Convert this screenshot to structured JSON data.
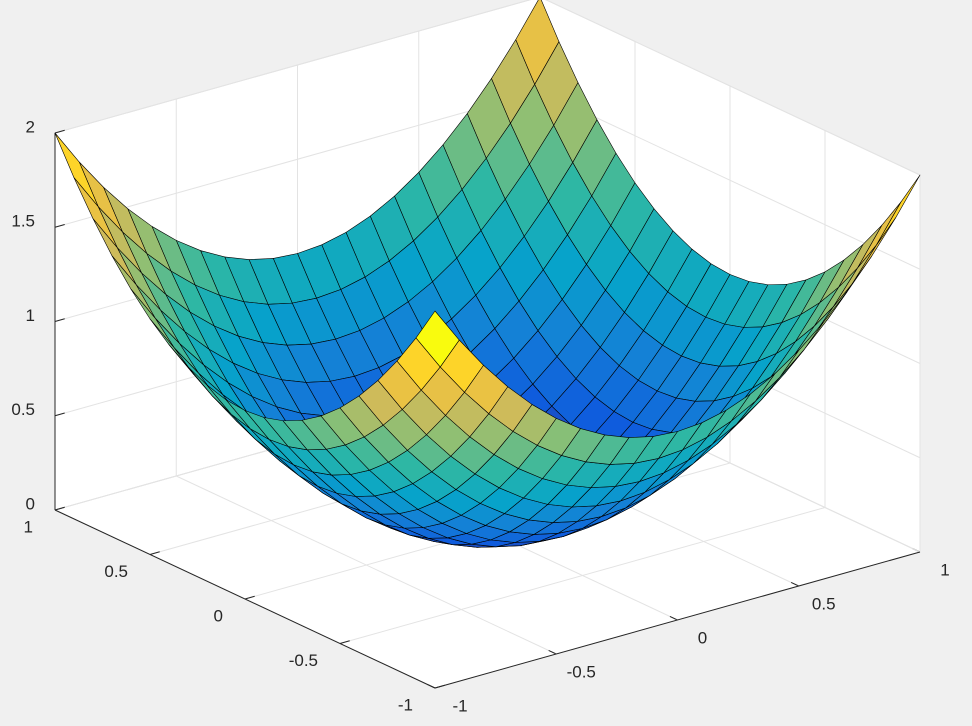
{
  "chart_data": {
    "type": "surface",
    "colormap": "parula",
    "grid": true,
    "x": [
      -1,
      -0.9,
      -0.8,
      -0.7,
      -0.6,
      -0.5,
      -0.4,
      -0.3,
      -0.2,
      -0.1,
      0,
      0.1,
      0.2,
      0.3,
      0.4,
      0.5,
      0.6,
      0.7,
      0.8,
      0.9,
      1
    ],
    "y": [
      -1,
      -0.9,
      -0.8,
      -0.7,
      -0.6,
      -0.5,
      -0.4,
      -0.3,
      -0.2,
      -0.1,
      0,
      0.1,
      0.2,
      0.3,
      0.4,
      0.5,
      0.6,
      0.7,
      0.8,
      0.9,
      1
    ],
    "z": [
      [
        2,
        1.81,
        1.64,
        1.49,
        1.36,
        1.25,
        1.16,
        1.09,
        1.04,
        1.01,
        1,
        1.01,
        1.04,
        1.09,
        1.16,
        1.25,
        1.36,
        1.49,
        1.64,
        1.81,
        2
      ],
      [
        1.81,
        1.62,
        1.45,
        1.3,
        1.17,
        1.06,
        0.97,
        0.9,
        0.85,
        0.82,
        0.81,
        0.82,
        0.85,
        0.9,
        0.97,
        1.06,
        1.17,
        1.3,
        1.45,
        1.62,
        1.81
      ],
      [
        1.64,
        1.45,
        1.28,
        1.13,
        1,
        0.89,
        0.8,
        0.73,
        0.68,
        0.65,
        0.64,
        0.65,
        0.68,
        0.73,
        0.8,
        0.89,
        1,
        1.13,
        1.28,
        1.45,
        1.64
      ],
      [
        1.49,
        1.3,
        1.13,
        0.98,
        0.85,
        0.74,
        0.65,
        0.58,
        0.53,
        0.5,
        0.49,
        0.5,
        0.53,
        0.58,
        0.65,
        0.74,
        0.85,
        0.98,
        1.13,
        1.3,
        1.49
      ],
      [
        1.36,
        1.17,
        1,
        0.85,
        0.72,
        0.61,
        0.52,
        0.45,
        0.4,
        0.37,
        0.36,
        0.37,
        0.4,
        0.45,
        0.52,
        0.61,
        0.72,
        0.85,
        1,
        1.17,
        1.36
      ],
      [
        1.25,
        1.06,
        0.89,
        0.74,
        0.61,
        0.5,
        0.41,
        0.34,
        0.29,
        0.26,
        0.25,
        0.26,
        0.29,
        0.34,
        0.41,
        0.5,
        0.61,
        0.74,
        0.89,
        1.06,
        1.25
      ],
      [
        1.16,
        0.97,
        0.8,
        0.65,
        0.52,
        0.41,
        0.32,
        0.25,
        0.2,
        0.17,
        0.16,
        0.17,
        0.2,
        0.25,
        0.32,
        0.41,
        0.52,
        0.65,
        0.8,
        0.97,
        1.16
      ],
      [
        1.09,
        0.9,
        0.73,
        0.58,
        0.45,
        0.34,
        0.25,
        0.18,
        0.13,
        0.1,
        0.09,
        0.1,
        0.13,
        0.18,
        0.25,
        0.34,
        0.45,
        0.58,
        0.73,
        0.9,
        1.09
      ],
      [
        1.04,
        0.85,
        0.68,
        0.53,
        0.4,
        0.29,
        0.2,
        0.13,
        0.08,
        0.05,
        0.04,
        0.05,
        0.08,
        0.13,
        0.2,
        0.29,
        0.4,
        0.53,
        0.68,
        0.85,
        1.04
      ],
      [
        1.01,
        0.82,
        0.65,
        0.5,
        0.37,
        0.26,
        0.17,
        0.1,
        0.05,
        0.02,
        0.01,
        0.02,
        0.05,
        0.1,
        0.17,
        0.26,
        0.37,
        0.5,
        0.65,
        0.82,
        1.01
      ],
      [
        1,
        0.81,
        0.64,
        0.49,
        0.36,
        0.25,
        0.16,
        0.09,
        0.04,
        0.01,
        0,
        0.01,
        0.04,
        0.09,
        0.16,
        0.25,
        0.36,
        0.49,
        0.64,
        0.81,
        1
      ],
      [
        1.01,
        0.82,
        0.65,
        0.5,
        0.37,
        0.26,
        0.17,
        0.1,
        0.05,
        0.02,
        0.01,
        0.02,
        0.05,
        0.1,
        0.17,
        0.26,
        0.37,
        0.5,
        0.65,
        0.82,
        1.01
      ],
      [
        1.04,
        0.85,
        0.68,
        0.53,
        0.4,
        0.29,
        0.2,
        0.13,
        0.08,
        0.05,
        0.04,
        0.05,
        0.08,
        0.13,
        0.2,
        0.29,
        0.4,
        0.53,
        0.68,
        0.85,
        1.04
      ],
      [
        1.09,
        0.9,
        0.73,
        0.58,
        0.45,
        0.34,
        0.25,
        0.18,
        0.13,
        0.1,
        0.09,
        0.1,
        0.13,
        0.18,
        0.25,
        0.34,
        0.45,
        0.58,
        0.73,
        0.9,
        1.09
      ],
      [
        1.16,
        0.97,
        0.8,
        0.65,
        0.52,
        0.41,
        0.32,
        0.25,
        0.2,
        0.17,
        0.16,
        0.17,
        0.2,
        0.25,
        0.32,
        0.41,
        0.52,
        0.65,
        0.8,
        0.97,
        1.16
      ],
      [
        1.25,
        1.06,
        0.89,
        0.74,
        0.61,
        0.5,
        0.41,
        0.34,
        0.29,
        0.26,
        0.25,
        0.26,
        0.29,
        0.34,
        0.41,
        0.5,
        0.61,
        0.74,
        0.89,
        1.06,
        1.25
      ],
      [
        1.36,
        1.17,
        1,
        0.85,
        0.72,
        0.61,
        0.52,
        0.45,
        0.4,
        0.37,
        0.36,
        0.37,
        0.4,
        0.45,
        0.52,
        0.61,
        0.72,
        0.85,
        1,
        1.17,
        1.36
      ],
      [
        1.49,
        1.3,
        1.13,
        0.98,
        0.85,
        0.74,
        0.65,
        0.58,
        0.53,
        0.5,
        0.49,
        0.5,
        0.53,
        0.58,
        0.65,
        0.74,
        0.85,
        0.98,
        1.13,
        1.3,
        1.49
      ],
      [
        1.64,
        1.45,
        1.28,
        1.13,
        1,
        0.89,
        0.8,
        0.73,
        0.68,
        0.65,
        0.64,
        0.65,
        0.68,
        0.73,
        0.8,
        0.89,
        1,
        1.13,
        1.28,
        1.45,
        1.64
      ],
      [
        1.81,
        1.62,
        1.45,
        1.3,
        1.17,
        1.06,
        0.97,
        0.9,
        0.85,
        0.82,
        0.81,
        0.82,
        0.85,
        0.9,
        0.97,
        1.06,
        1.17,
        1.3,
        1.45,
        1.62,
        1.81
      ],
      [
        2,
        1.81,
        1.64,
        1.49,
        1.36,
        1.25,
        1.16,
        1.09,
        1.04,
        1.01,
        1,
        1.01,
        1.04,
        1.09,
        1.16,
        1.25,
        1.36,
        1.49,
        1.64,
        1.81,
        2
      ]
    ],
    "xlim": [
      -1,
      1
    ],
    "ylim": [
      -1,
      1
    ],
    "zlim": [
      0,
      2
    ],
    "xticks": [
      -1,
      -0.5,
      0,
      0.5,
      1
    ],
    "yticks": [
      -1,
      -0.5,
      0,
      0.5,
      1
    ],
    "zticks": [
      0,
      0.5,
      1,
      1.5,
      2
    ]
  }
}
